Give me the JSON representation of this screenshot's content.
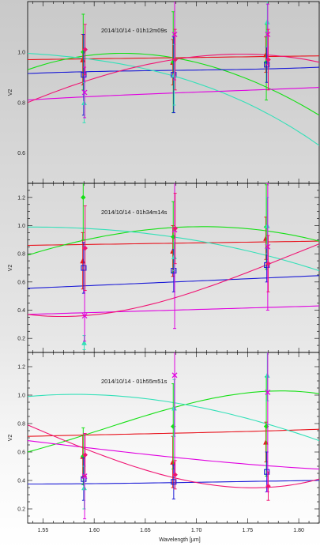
{
  "chart_data": {
    "type": "scatter",
    "xlabel": "Wavelength [µm]",
    "ylabel": "V2",
    "xlim": [
      1.535,
      1.82
    ],
    "x_ticks": [
      "1.55",
      "1.60",
      "1.65",
      "1.70",
      "1.75",
      "1.80"
    ],
    "x_tick_values": [
      1.55,
      1.6,
      1.65,
      1.7,
      1.75,
      1.8
    ],
    "x_points": [
      1.59,
      1.678,
      1.769
    ],
    "colors": {
      "red": "#e8131d",
      "green": "#15e015",
      "blue": "#1b1bd6",
      "cyan": "#33e0b8",
      "magenta": "#e000e0",
      "crimson": "#f01473"
    },
    "panels": [
      {
        "title": "2014/10/14 - 01h12m09s",
        "ylim": [
          0.48,
          1.2
        ],
        "y_ticks": [
          "0.6",
          "0.8",
          "1.0"
        ],
        "y_tick_values": [
          0.6,
          0.8,
          1.0
        ],
        "series": [
          {
            "color": "red",
            "marker": "triangle",
            "values": [
              0.97,
              0.96,
              0.99
            ],
            "errors": [
              0.1,
              0.09,
              0.07
            ],
            "curve": [
              0.97,
              0.975,
              0.98,
              0.985
            ]
          },
          {
            "color": "green",
            "marker": "diamond",
            "values": [
              1.0,
              0.96,
              0.96
            ],
            "errors": [
              0.15,
              0.2,
              0.15
            ],
            "curve": [
              0.93,
              0.995,
              0.93,
              0.75
            ]
          },
          {
            "color": "blue",
            "marker": "square",
            "values": [
              0.91,
              0.91,
              0.95
            ],
            "errors": [
              0.16,
              0.15,
              0.07
            ],
            "curve": [
              0.915,
              0.925,
              0.93,
              0.94
            ]
          },
          {
            "color": "cyan",
            "marker": "triangle",
            "values": [
              0.8,
              0.91,
              1.12
            ],
            "errors": [
              0.08,
              0.12,
              0.1
            ],
            "curve": [
              0.995,
              0.95,
              0.84,
              0.63
            ]
          },
          {
            "color": "magenta",
            "marker": "x",
            "values": [
              0.84,
              1.07,
              1.07
            ],
            "errors": [
              0.1,
              0.18,
              0.12
            ],
            "curve": [
              0.81,
              0.83,
              0.845,
              0.86
            ]
          },
          {
            "color": "crimson",
            "marker": "diamond",
            "values": [
              1.01,
              0.97,
              0.97
            ],
            "errors": [
              0.1,
              0.12,
              0.12
            ],
            "curve": [
              0.8,
              0.93,
              0.99,
              0.96
            ]
          }
        ]
      },
      {
        "title": "2014/10/14 - 01h34m14s",
        "ylim": [
          0.1,
          1.3
        ],
        "y_ticks": [
          "0.2",
          "0.4",
          "0.6",
          "0.8",
          "1.0",
          "1.2"
        ],
        "y_tick_values": [
          0.2,
          0.4,
          0.6,
          0.8,
          1.0,
          1.2
        ],
        "series": [
          {
            "color": "red",
            "marker": "triangle",
            "values": [
              0.75,
              0.82,
              0.91
            ],
            "errors": [
              0.2,
              0.18,
              0.15
            ],
            "curve": [
              0.86,
              0.87,
              0.88,
              0.89
            ]
          },
          {
            "color": "green",
            "marker": "diamond",
            "values": [
              1.2,
              0.92,
              0.99
            ],
            "errors": [
              0.3,
              0.25,
              0.3
            ],
            "curve": [
              0.79,
              0.95,
              0.99,
              0.89
            ]
          },
          {
            "color": "blue",
            "marker": "square",
            "values": [
              0.7,
              0.68,
              0.72
            ],
            "errors": [
              0.18,
              0.15,
              0.12
            ],
            "curve": [
              0.555,
              0.585,
              0.615,
              0.645
            ]
          },
          {
            "color": "cyan",
            "marker": "triangle",
            "values": [
              0.17,
              0.78,
              1.0
            ],
            "errors": [
              0.05,
              0.1,
              0.2
            ],
            "curve": [
              0.99,
              0.96,
              0.86,
              0.68
            ]
          },
          {
            "color": "magenta",
            "marker": "x",
            "values": [
              0.36,
              0.97,
              0.85
            ],
            "errors": [
              0.18,
              0.7,
              0.45
            ],
            "curve": [
              0.37,
              0.39,
              0.41,
              0.43
            ]
          },
          {
            "color": "crimson",
            "marker": "diamond",
            "values": [
              0.84,
              0.98,
              0.73
            ],
            "errors": [
              0.3,
              0.25,
              0.2
            ],
            "curve": [
              0.37,
              0.4,
              0.6,
              0.87
            ]
          }
        ]
      },
      {
        "title": "2014/10/14 - 01h55m51s",
        "ylim": [
          0.1,
          1.3
        ],
        "y_ticks": [
          "0.2",
          "0.4",
          "0.6",
          "0.8",
          "1.0",
          "1.2"
        ],
        "y_tick_values": [
          0.2,
          0.4,
          0.6,
          0.8,
          1.0,
          1.2
        ],
        "series": [
          {
            "color": "red",
            "marker": "triangle",
            "values": [
              0.57,
              0.53,
              0.67
            ],
            "errors": [
              0.15,
              0.18,
              0.14
            ],
            "curve": [
              0.71,
              0.725,
              0.74,
              0.76
            ]
          },
          {
            "color": "green",
            "marker": "diamond",
            "values": [
              0.57,
              0.78,
              0.78
            ],
            "errors": [
              0.2,
              0.3,
              0.35
            ],
            "curve": [
              0.6,
              0.81,
              0.99,
              1.01
            ]
          },
          {
            "color": "blue",
            "marker": "square",
            "values": [
              0.41,
              0.39,
              0.46
            ],
            "errors": [
              0.15,
              0.12,
              0.14
            ],
            "curve": [
              0.375,
              0.38,
              0.39,
              0.4
            ]
          },
          {
            "color": "cyan",
            "marker": "triangle",
            "values": [
              0.35,
              0.91,
              1.14
            ],
            "errors": [
              0.15,
              0.2,
              0.18
            ],
            "curve": [
              0.99,
              0.99,
              0.88,
              0.68
            ]
          },
          {
            "color": "magenta",
            "marker": "x",
            "values": [
              0.43,
              1.14,
              1.02
            ],
            "errors": [
              0.3,
              0.7,
              0.7
            ],
            "curve": [
              0.68,
              0.6,
              0.53,
              0.48
            ]
          },
          {
            "color": "crimson",
            "marker": "diamond",
            "values": [
              0.58,
              0.44,
              0.36
            ],
            "errors": [
              0.15,
              0.1,
              0.1
            ],
            "curve": [
              0.79,
              0.52,
              0.36,
              0.41
            ]
          }
        ]
      }
    ]
  }
}
